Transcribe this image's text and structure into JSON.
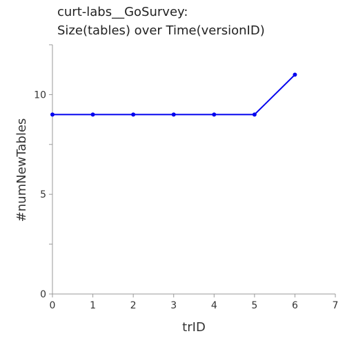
{
  "chart_data": {
    "type": "line",
    "title": "curt-labs__GoSurvey:",
    "subtitle": "Size(tables) over Time(versionID)",
    "xlabel": "trID",
    "ylabel": "#numNewTables",
    "xlim": [
      0,
      7
    ],
    "ylim": [
      0,
      12.5
    ],
    "xticks": [
      "0",
      "1",
      "2",
      "3",
      "4",
      "5",
      "6",
      "7"
    ],
    "yticks": [
      "0",
      "5",
      "10"
    ],
    "grid": false,
    "series": [
      {
        "x": [
          0,
          1,
          2,
          3,
          4,
          5,
          6
        ],
        "y": [
          9,
          9,
          9,
          9,
          9,
          9,
          11
        ],
        "color": "#0000ee",
        "marker": "circle"
      }
    ],
    "axis_color": "#999999",
    "text_color": "#333333"
  }
}
